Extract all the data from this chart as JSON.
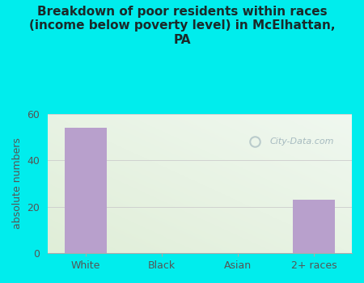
{
  "title": "Breakdown of poor residents within races\n(income below poverty level) in McElhattan,\nPA",
  "categories": [
    "White",
    "Black",
    "Asian",
    "2+ races"
  ],
  "values": [
    54,
    0,
    0,
    23
  ],
  "bar_color": "#b8a0cc",
  "ylabel": "absolute numbers",
  "ylim": [
    0,
    60
  ],
  "yticks": [
    0,
    20,
    40,
    60
  ],
  "bg_outer": "#00eded",
  "bg_plot_topleft": "#e8f0d8",
  "bg_plot_topright": "#f0f8f8",
  "bg_plot_bottomleft": "#ddeedd",
  "bg_plot_bottomright": "#eef8f0",
  "grid_color": "#cccccc",
  "title_color": "#1a2a2a",
  "tick_color": "#555555",
  "watermark": "City-Data.com",
  "bar_width": 0.55
}
